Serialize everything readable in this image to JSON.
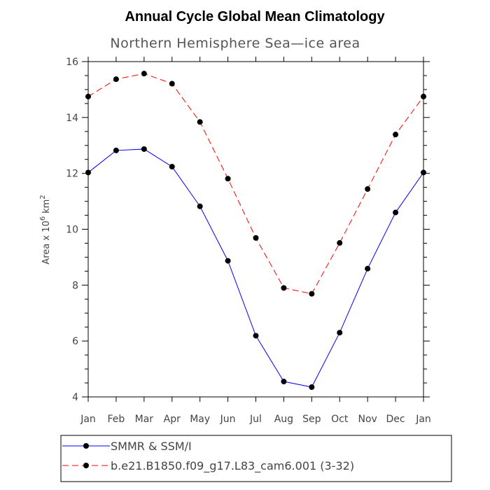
{
  "chart_data": {
    "type": "line",
    "title": "Annual Cycle Global Mean Climatology",
    "subtitle": "Northern Hemisphere Sea—ice area",
    "ylabel_prefix": "Area x 10",
    "ylabel_exp": "6",
    "ylabel_unit": "km",
    "ylabel_unit_exp": "2",
    "xlabel": "",
    "categories": [
      "Jan",
      "Feb",
      "Mar",
      "Apr",
      "May",
      "Jun",
      "Jul",
      "Aug",
      "Sep",
      "Oct",
      "Nov",
      "Dec",
      "Jan"
    ],
    "ylim": [
      4,
      16
    ],
    "yticks": [
      4,
      6,
      8,
      10,
      12,
      14,
      16
    ],
    "series": [
      {
        "name": "SMMR & SSM/I",
        "color": "#0000ff",
        "dash": "solid",
        "values": [
          12.03,
          12.82,
          12.87,
          12.24,
          10.82,
          8.87,
          6.19,
          4.55,
          4.35,
          6.3,
          8.59,
          10.6,
          12.03
        ]
      },
      {
        "name": "b.e21.B1850.f09_g17.L83_cam6.001 (3-32)",
        "color": "#ff0000",
        "dash": "dashed",
        "values": [
          14.75,
          15.37,
          15.57,
          15.21,
          13.84,
          11.81,
          9.69,
          7.9,
          7.69,
          9.51,
          11.44,
          13.39,
          14.75
        ]
      }
    ]
  }
}
